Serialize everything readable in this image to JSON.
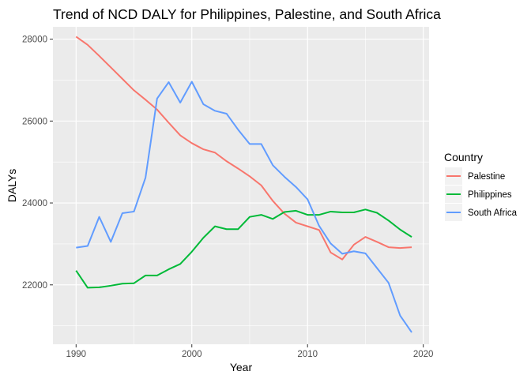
{
  "chart_data": {
    "type": "line",
    "title": "Trend of NCD DALY for Philippines, Palestine, and South Africa",
    "xlabel": "Year",
    "ylabel": "DALYs",
    "xlim": [
      1988,
      2020.5
    ],
    "ylim": [
      20550,
      28300
    ],
    "x_ticks": [
      1990,
      2000,
      2010,
      2020
    ],
    "y_ticks": [
      22000,
      24000,
      26000,
      28000
    ],
    "x_tick_labels": [
      "1990",
      "2000",
      "2010",
      "2020"
    ],
    "y_tick_labels": [
      "22000",
      "24000",
      "26000",
      "28000"
    ],
    "grid": true,
    "background": "#ebebeb",
    "legend": {
      "title": "Country",
      "position": "right"
    },
    "x": [
      1990,
      1991,
      1992,
      1993,
      1994,
      1995,
      1996,
      1997,
      1998,
      1999,
      2000,
      2001,
      2002,
      2003,
      2004,
      2005,
      2006,
      2007,
      2008,
      2009,
      2010,
      2011,
      2012,
      2013,
      2014,
      2015,
      2016,
      2017,
      2018,
      2019
    ],
    "series": [
      {
        "name": "Palestine",
        "color": "#f8766d",
        "values": [
          28060,
          27860,
          27590,
          27310,
          27030,
          26750,
          26520,
          26280,
          25960,
          25650,
          25460,
          25310,
          25230,
          25020,
          24840,
          24650,
          24430,
          24050,
          23740,
          23520,
          23430,
          23340,
          22790,
          22620,
          22980,
          23170,
          23050,
          22920,
          22900,
          22920
        ]
      },
      {
        "name": "Philippines",
        "color": "#00ba38",
        "values": [
          22350,
          21930,
          21940,
          21980,
          22030,
          22040,
          22230,
          22230,
          22380,
          22510,
          22810,
          23150,
          23430,
          23360,
          23360,
          23660,
          23710,
          23610,
          23780,
          23810,
          23710,
          23710,
          23790,
          23770,
          23770,
          23840,
          23760,
          23570,
          23350,
          23170
        ]
      },
      {
        "name": "South Africa",
        "color": "#619cff",
        "values": [
          22910,
          22950,
          23660,
          23050,
          23750,
          23790,
          24620,
          26550,
          26950,
          26450,
          26960,
          26410,
          26250,
          26180,
          25790,
          25440,
          25440,
          24920,
          24640,
          24390,
          24090,
          23440,
          23010,
          22760,
          22820,
          22770,
          22410,
          22050,
          21250,
          20840
        ]
      }
    ]
  }
}
